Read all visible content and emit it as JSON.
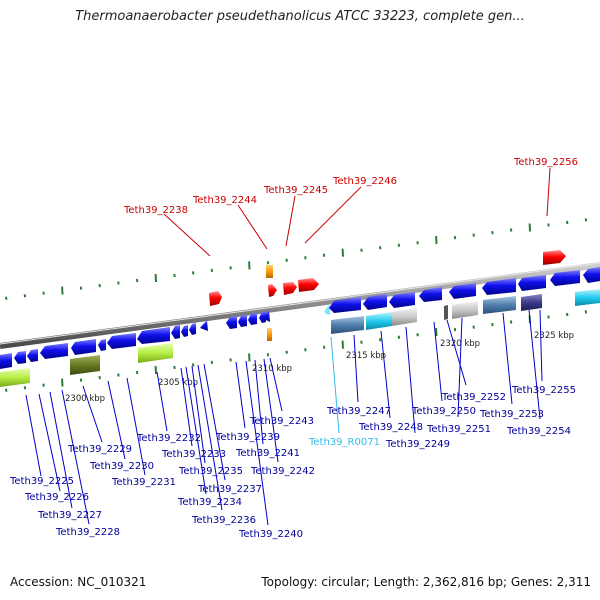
{
  "title": "Thermoanaerobacter pseudethanolicus ATCC 33223, complete gen...",
  "footer": {
    "accession": "Accession: NC_010321",
    "summary": "Topology: circular; Length: 2,362,816 bp; Genes: 2,311"
  },
  "colors": {
    "backbone": "#888888",
    "forward_gene": "#ff0000",
    "reverse_gene": "#0000ee",
    "upper_label": "#cc0000",
    "lower_label": "#000099",
    "rna_label": "#33bbee",
    "tick": "#2e7d32"
  },
  "ruler": [
    "2300 kbp",
    "2305 kbp",
    "2310 kbp",
    "2315 kbp",
    "2320 kbp",
    "2325 kbp"
  ],
  "upper_labels": [
    "Teth39_2238",
    "Teth39_2244",
    "Teth39_2245",
    "Teth39_2246",
    "Teth39_2256"
  ],
  "lower_labels": [
    "Teth39_2225",
    "Teth39_2226",
    "Teth39_2227",
    "Teth39_2228",
    "Teth39_2229",
    "Teth39_2230",
    "Teth39_2231",
    "Teth39_2232",
    "Teth39_2233",
    "Teth39_2234",
    "Teth39_2235",
    "Teth39_2236",
    "Teth39_2237",
    "Teth39_2239",
    "Teth39_2240",
    "Teth39_2241",
    "Teth39_2242",
    "Teth39_2243",
    "Teth39_R0071",
    "Teth39_2247",
    "Teth39_2248",
    "Teth39_2249",
    "Teth39_2250",
    "Teth39_2251",
    "Teth39_2252",
    "Teth39_2253",
    "Teth39_2254",
    "Teth39_2255"
  ]
}
